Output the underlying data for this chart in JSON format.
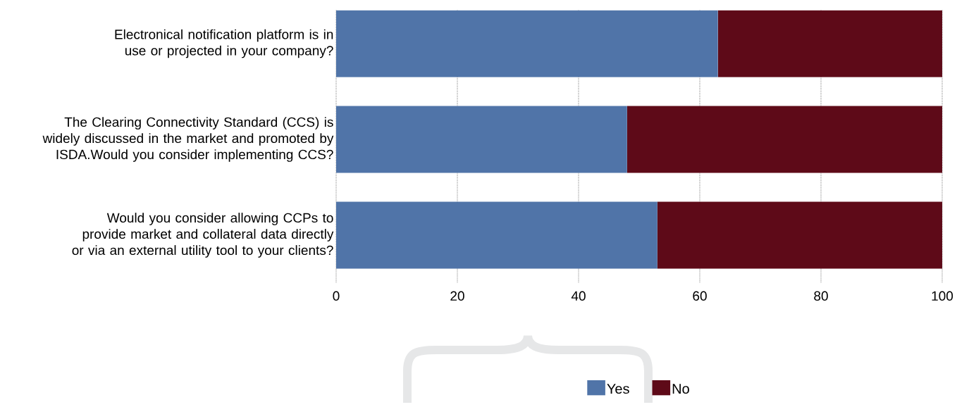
{
  "chart_data": {
    "type": "bar",
    "orientation": "horizontal",
    "stacked": true,
    "categories": [
      "Electronical notification platform is in use or projected in your company?",
      "The Clearing Connectivity Standard (CCS) is widely discussed in the market and promoted by ISDA.Would you consider implementing CCS?",
      "Would you consider allowing CCPs to provide market and collateral data directly or via an external utility tool to your clients?"
    ],
    "series": [
      {
        "name": "Yes",
        "color": "#5074a8",
        "values": [
          63,
          48,
          53
        ]
      },
      {
        "name": "No",
        "color": "#5e0a18",
        "values": [
          37,
          52,
          47
        ]
      }
    ],
    "xlim": [
      0,
      100
    ],
    "xticks": [
      0,
      20,
      40,
      60,
      80,
      100
    ],
    "grid": "x",
    "legend": "bottom"
  }
}
